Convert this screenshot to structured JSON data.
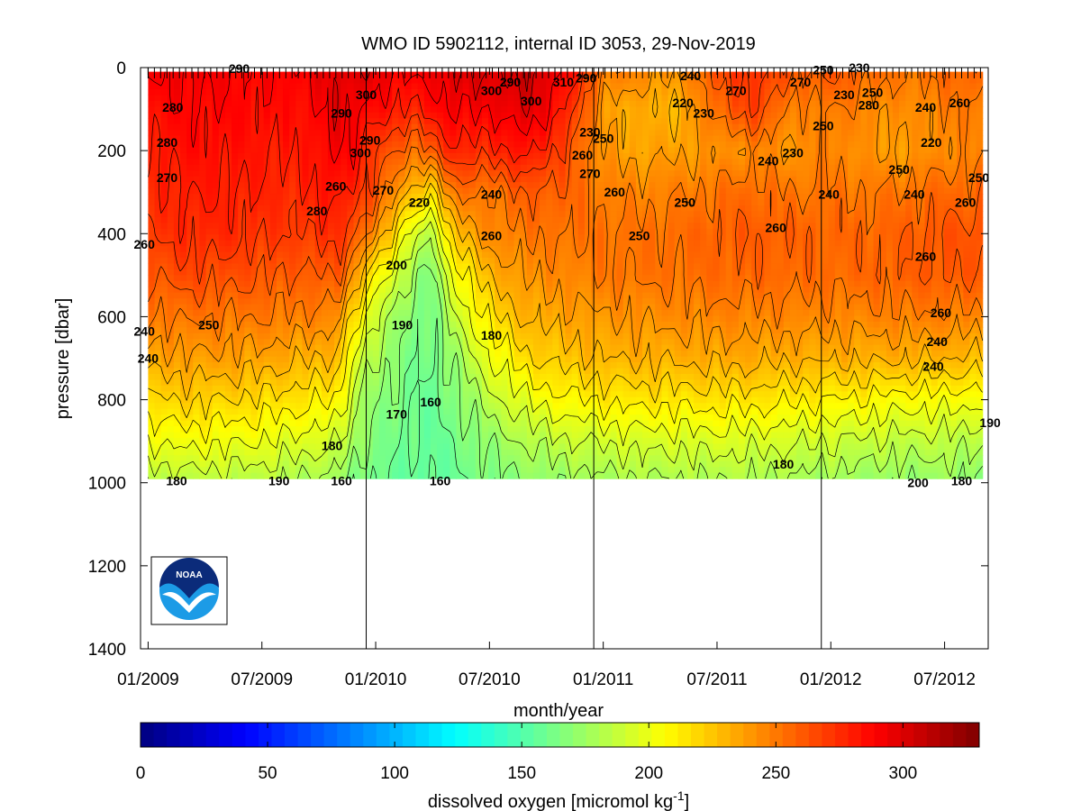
{
  "chart_data": {
    "type": "heatmap",
    "title": "WMO ID 5902112, internal ID 3053, 29-Nov-2019",
    "xlabel": "month/year",
    "ylabel": "pressure [dbar]",
    "x_tick_labels": [
      "01/2009",
      "07/2009",
      "01/2010",
      "07/2010",
      "01/2011",
      "07/2011",
      "01/2012",
      "07/2012"
    ],
    "x_tick_months": [
      0,
      6,
      12,
      18,
      24,
      30,
      36,
      42
    ],
    "x_range_months": [
      -0.4,
      44.3
    ],
    "year_boundaries_months": [
      11.5,
      23.5,
      35.5
    ],
    "y_ticks": [
      0,
      200,
      400,
      600,
      800,
      1000,
      1200,
      1400
    ],
    "y_tick_labels": [
      "0",
      "200",
      "400",
      "600",
      "800",
      "1000",
      "1200",
      "1400"
    ],
    "y_range": [
      1400,
      0
    ],
    "y_reversed": true,
    "data_depth_max": 990,
    "colorbar": {
      "label": "dissolved oxygen [micromol kg",
      "label_exponent": "-1",
      "label_suffix": "]",
      "range": [
        0,
        330
      ],
      "ticks": [
        0,
        50,
        100,
        150,
        200,
        250,
        300
      ],
      "tick_labels": [
        "0",
        "50",
        "100",
        "150",
        "200",
        "250",
        "300"
      ],
      "colormap": "jet"
    },
    "contour_levels": [
      160,
      170,
      180,
      190,
      200,
      210,
      220,
      230,
      240,
      250,
      260,
      270,
      280,
      290,
      300,
      310
    ],
    "oxygen_field": {
      "x_months": [
        0,
        2,
        4,
        6,
        8,
        10,
        11,
        12,
        14,
        15,
        16,
        18,
        20,
        22,
        24,
        26,
        28,
        30,
        32,
        34,
        36,
        38,
        40,
        42,
        44
      ],
      "depth_dbar": [
        10,
        100,
        200,
        300,
        400,
        500,
        600,
        700,
        800,
        900,
        990
      ],
      "values": [
        [
          290,
          292,
          290,
          288,
          290,
          298,
          300,
          296,
          290,
          292,
          300,
          300,
          305,
          290,
          250,
          245,
          240,
          265,
          275,
          260,
          262,
          255,
          250,
          255,
          258
        ],
        [
          285,
          288,
          288,
          286,
          285,
          296,
          292,
          285,
          278,
          285,
          292,
          290,
          300,
          280,
          238,
          232,
          230,
          255,
          270,
          245,
          250,
          245,
          242,
          248,
          250
        ],
        [
          280,
          285,
          284,
          282,
          280,
          292,
          285,
          270,
          250,
          262,
          278,
          275,
          285,
          265,
          240,
          235,
          238,
          240,
          245,
          240,
          248,
          240,
          238,
          245,
          245
        ],
        [
          275,
          280,
          280,
          278,
          276,
          285,
          275,
          262,
          225,
          215,
          252,
          250,
          260,
          258,
          248,
          246,
          248,
          252,
          255,
          250,
          252,
          250,
          252,
          255,
          256
        ],
        [
          270,
          276,
          276,
          272,
          270,
          275,
          262,
          240,
          195,
          180,
          225,
          245,
          250,
          252,
          252,
          252,
          254,
          258,
          260,
          258,
          256,
          256,
          258,
          262,
          262
        ],
        [
          260,
          266,
          264,
          262,
          258,
          262,
          235,
          210,
          175,
          165,
          200,
          230,
          242,
          245,
          250,
          252,
          252,
          255,
          256,
          255,
          254,
          256,
          258,
          260,
          260
        ],
        [
          248,
          252,
          250,
          250,
          248,
          245,
          210,
          190,
          165,
          162,
          185,
          215,
          232,
          236,
          240,
          242,
          244,
          246,
          246,
          246,
          245,
          246,
          248,
          248,
          246
        ],
        [
          235,
          238,
          238,
          236,
          232,
          228,
          195,
          178,
          162,
          160,
          172,
          200,
          218,
          225,
          230,
          232,
          232,
          234,
          234,
          232,
          232,
          232,
          232,
          230,
          228
        ],
        [
          218,
          222,
          220,
          218,
          214,
          210,
          182,
          170,
          160,
          158,
          165,
          185,
          200,
          208,
          212,
          214,
          214,
          215,
          214,
          212,
          210,
          208,
          205,
          205,
          202
        ],
        [
          200,
          204,
          202,
          200,
          196,
          192,
          174,
          166,
          158,
          157,
          160,
          172,
          182,
          188,
          192,
          194,
          194,
          195,
          194,
          192,
          190,
          188,
          186,
          186,
          182
        ],
        [
          182,
          186,
          185,
          184,
          180,
          176,
          165,
          160,
          156,
          156,
          158,
          165,
          170,
          174,
          178,
          180,
          180,
          181,
          180,
          178,
          176,
          174,
          172,
          174,
          170
        ]
      ]
    },
    "contour_labels": [
      {
        "text": "290",
        "x": 4.8,
        "y": 2
      },
      {
        "text": "280",
        "x": 1.3,
        "y": 95
      },
      {
        "text": "280",
        "x": 1.0,
        "y": 180
      },
      {
        "text": "270",
        "x": 1.0,
        "y": 265
      },
      {
        "text": "260",
        "x": -0.2,
        "y": 425
      },
      {
        "text": "250",
        "x": 3.2,
        "y": 620
      },
      {
        "text": "240",
        "x": 0.0,
        "y": 700
      },
      {
        "text": "240",
        "x": -0.2,
        "y": 635
      },
      {
        "text": "180",
        "x": 1.5,
        "y": 995
      },
      {
        "text": "190",
        "x": 6.9,
        "y": 995
      },
      {
        "text": "300",
        "x": 11.5,
        "y": 65
      },
      {
        "text": "290",
        "x": 10.2,
        "y": 110
      },
      {
        "text": "290",
        "x": 11.7,
        "y": 175
      },
      {
        "text": "300",
        "x": 11.2,
        "y": 205
      },
      {
        "text": "260",
        "x": 9.9,
        "y": 285
      },
      {
        "text": "280",
        "x": 8.9,
        "y": 345
      },
      {
        "text": "270",
        "x": 12.4,
        "y": 295
      },
      {
        "text": "220",
        "x": 14.3,
        "y": 325
      },
      {
        "text": "200",
        "x": 13.1,
        "y": 475
      },
      {
        "text": "190",
        "x": 13.4,
        "y": 620
      },
      {
        "text": "180",
        "x": 9.7,
        "y": 910
      },
      {
        "text": "170",
        "x": 13.1,
        "y": 835
      },
      {
        "text": "160",
        "x": 14.9,
        "y": 805
      },
      {
        "text": "160",
        "x": 10.2,
        "y": 995
      },
      {
        "text": "160",
        "x": 15.4,
        "y": 995
      },
      {
        "text": "300",
        "x": 18.1,
        "y": 55
      },
      {
        "text": "290",
        "x": 19.1,
        "y": 35
      },
      {
        "text": "300",
        "x": 20.2,
        "y": 80
      },
      {
        "text": "310",
        "x": 21.9,
        "y": 35
      },
      {
        "text": "290",
        "x": 23.1,
        "y": 25
      },
      {
        "text": "240",
        "x": 18.1,
        "y": 305
      },
      {
        "text": "260",
        "x": 18.1,
        "y": 405
      },
      {
        "text": "180",
        "x": 18.1,
        "y": 645
      },
      {
        "text": "230",
        "x": 23.3,
        "y": 155
      },
      {
        "text": "250",
        "x": 24.0,
        "y": 170
      },
      {
        "text": "260",
        "x": 22.9,
        "y": 210
      },
      {
        "text": "270",
        "x": 23.3,
        "y": 255
      },
      {
        "text": "260",
        "x": 24.6,
        "y": 300
      },
      {
        "text": "250",
        "x": 25.9,
        "y": 405
      },
      {
        "text": "250",
        "x": 28.3,
        "y": 325
      },
      {
        "text": "240",
        "x": 28.6,
        "y": 20
      },
      {
        "text": "220",
        "x": 28.2,
        "y": 85
      },
      {
        "text": "230",
        "x": 29.3,
        "y": 110
      },
      {
        "text": "270",
        "x": 31.0,
        "y": 55
      },
      {
        "text": "270",
        "x": 34.4,
        "y": 35
      },
      {
        "text": "260",
        "x": 33.1,
        "y": 385
      },
      {
        "text": "240",
        "x": 32.7,
        "y": 225
      },
      {
        "text": "230",
        "x": 34.0,
        "y": 205
      },
      {
        "text": "250",
        "x": 35.6,
        "y": 140
      },
      {
        "text": "240",
        "x": 35.9,
        "y": 305
      },
      {
        "text": "180",
        "x": 33.5,
        "y": 955
      },
      {
        "text": "250",
        "x": 35.6,
        "y": 5
      },
      {
        "text": "230",
        "x": 37.5,
        "y": 0
      },
      {
        "text": "230",
        "x": 36.7,
        "y": 65
      },
      {
        "text": "250",
        "x": 38.2,
        "y": 60
      },
      {
        "text": "280",
        "x": 38.0,
        "y": 90
      },
      {
        "text": "240",
        "x": 41.0,
        "y": 95
      },
      {
        "text": "260",
        "x": 42.8,
        "y": 85
      },
      {
        "text": "250",
        "x": 39.6,
        "y": 245
      },
      {
        "text": "250",
        "x": 43.8,
        "y": 265
      },
      {
        "text": "220",
        "x": 41.3,
        "y": 180
      },
      {
        "text": "240",
        "x": 40.4,
        "y": 305
      },
      {
        "text": "260",
        "x": 43.1,
        "y": 325
      },
      {
        "text": "260",
        "x": 41.0,
        "y": 455
      },
      {
        "text": "260",
        "x": 41.8,
        "y": 590
      },
      {
        "text": "240",
        "x": 41.6,
        "y": 660
      },
      {
        "text": "240",
        "x": 41.4,
        "y": 720
      },
      {
        "text": "190",
        "x": 44.4,
        "y": 855
      },
      {
        "text": "200",
        "x": 40.6,
        "y": 1000
      },
      {
        "text": "180",
        "x": 42.9,
        "y": 995
      }
    ]
  }
}
